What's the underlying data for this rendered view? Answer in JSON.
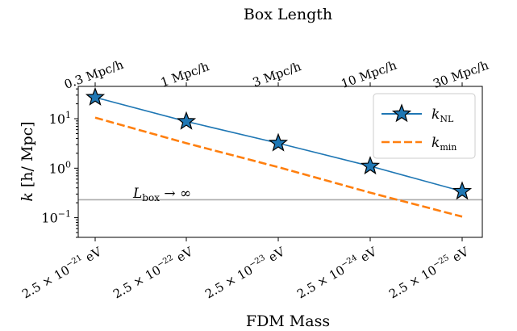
{
  "chart_data": {
    "type": "line",
    "title": "",
    "x_categories": [
      "2.5 × 10^{-21} eV",
      "2.5 × 10^{-22} eV",
      "2.5 × 10^{-23} eV",
      "2.5 × 10^{-24} eV",
      "2.5 × 10^{-25} eV"
    ],
    "x_ticks": [
      {
        "mantissa": "2.5 × 10",
        "exp": "−21",
        "unit": " eV"
      },
      {
        "mantissa": "2.5 × 10",
        "exp": "−22",
        "unit": " eV"
      },
      {
        "mantissa": "2.5 × 10",
        "exp": "−23",
        "unit": " eV"
      },
      {
        "mantissa": "2.5 × 10",
        "exp": "−24",
        "unit": " eV"
      },
      {
        "mantissa": "2.5 × 10",
        "exp": "−25",
        "unit": " eV"
      }
    ],
    "xlabel": "FDM Mass",
    "top_xlabel": "Box Length",
    "top_x_ticks": [
      "0.3 Mpc/h",
      "1 Mpc/h",
      "3 Mpc/h",
      "10 Mpc/h",
      "30 Mpc/h"
    ],
    "ylabel": {
      "var": "k",
      "unit": " [h/ Mpc]"
    },
    "y_scale": "log",
    "ylim": [
      0.04,
      45
    ],
    "y_ticks": [
      {
        "value": 0.1,
        "base": "10",
        "exp": "−1"
      },
      {
        "value": 1,
        "base": "10",
        "exp": "0"
      },
      {
        "value": 10,
        "base": "10",
        "exp": "1"
      }
    ],
    "series": [
      {
        "name": "k_NL",
        "label_var": "k",
        "label_sub": "NL",
        "style": "solid",
        "marker": "star",
        "color": "#1f77b4",
        "values": [
          27,
          8.8,
          3.2,
          1.1,
          0.34
        ]
      },
      {
        "name": "k_min",
        "label_var": "k",
        "label_sub": "min",
        "style": "dashed",
        "marker": "none",
        "color": "#ff7f0e",
        "values": [
          10.5,
          3.2,
          1.05,
          0.32,
          0.105
        ]
      }
    ],
    "hline": {
      "value": 0.23,
      "color": "#aaaaaa",
      "label_var": "L",
      "label_sub": "box",
      "label_suffix": " → ∞"
    },
    "legend_position": "top-right"
  }
}
